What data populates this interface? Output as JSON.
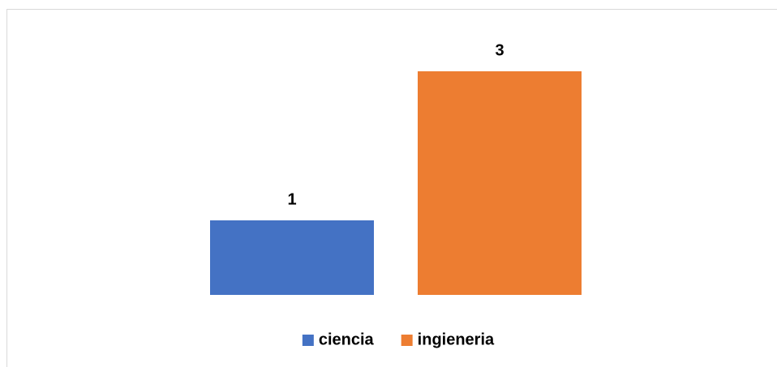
{
  "chart_data": {
    "type": "bar",
    "categories": [
      null
    ],
    "series": [
      {
        "name": "ciencia",
        "color": "#4472c4",
        "values": [
          1
        ]
      },
      {
        "name": "ingieneria",
        "color": "#ed7d31",
        "values": [
          3
        ]
      }
    ],
    "ylim": [
      0,
      3.5
    ],
    "legend": "bottom"
  }
}
